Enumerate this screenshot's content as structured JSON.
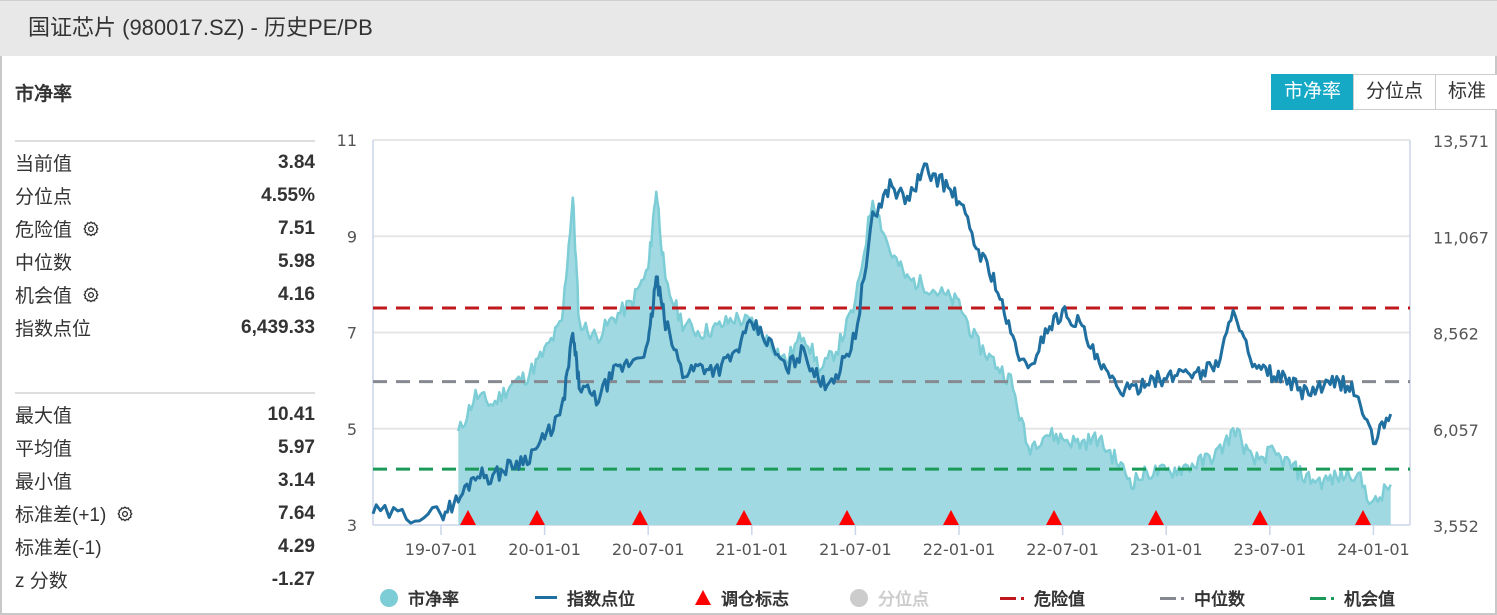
{
  "titlebar": {
    "title": "国证芯片 (980017.SZ) - 历史PE/PB"
  },
  "section": {
    "title": "市净率"
  },
  "tabs": [
    {
      "label": "市净率",
      "active": true
    },
    {
      "label": "分位点",
      "active": false
    },
    {
      "label": "标准",
      "active": false
    }
  ],
  "stats_top": [
    {
      "label": "当前值",
      "value": "3.84",
      "gear": false
    },
    {
      "label": "分位点",
      "value": "4.55%",
      "gear": false
    },
    {
      "label": "危险值",
      "value": "7.51",
      "gear": true
    },
    {
      "label": "中位数",
      "value": "5.98",
      "gear": false
    },
    {
      "label": "机会值",
      "value": "4.16",
      "gear": true
    },
    {
      "label": "指数点位",
      "value": "6,439.33",
      "gear": false
    }
  ],
  "stats_bottom": [
    {
      "label": "最大值",
      "value": "10.41",
      "gear": false
    },
    {
      "label": "平均值",
      "value": "5.97",
      "gear": false
    },
    {
      "label": "最小值",
      "value": "3.14",
      "gear": false
    },
    {
      "label": "标准差(+1)",
      "value": "7.64",
      "gear": true
    },
    {
      "label": "标准差(-1)",
      "value": "4.29",
      "gear": false
    },
    {
      "label": "z 分数",
      "value": "-1.27",
      "gear": false
    }
  ],
  "colors": {
    "pb_fill": "#a0d9e1",
    "pb_line": "#7dcdd6",
    "index_line": "#1f6fa0",
    "danger": "#c0191d",
    "median": "#868a90",
    "opportunity": "#1a9a58",
    "marker": "#ff0000",
    "grid": "#e6e6e6",
    "tab_active": "#16a9c6"
  },
  "legend": [
    {
      "label": "市净率",
      "symbol": "circle",
      "color": "#7dcdd6",
      "enabled": true
    },
    {
      "label": "指数点位",
      "symbol": "line",
      "color": "#1f6fa0",
      "enabled": true
    },
    {
      "label": "调仓标志",
      "symbol": "triangle",
      "color": "#ff0000",
      "enabled": true
    },
    {
      "label": "分位点",
      "symbol": "circle",
      "color": "#cccccc",
      "enabled": false
    },
    {
      "label": "危险值",
      "symbol": "dash",
      "color": "#c0191d",
      "enabled": true
    },
    {
      "label": "中位数",
      "symbol": "dash",
      "color": "#868a90",
      "enabled": true
    },
    {
      "label": "机会值",
      "symbol": "dash",
      "color": "#1a9a58",
      "enabled": true
    }
  ],
  "chart_data": {
    "type": "line",
    "title": "国证芯片 (980017.SZ) - 历史PE/PB",
    "left_axis": {
      "label": "市净率",
      "ticks": [
        "3",
        "5",
        "7",
        "9",
        "11"
      ],
      "range": [
        3,
        11
      ]
    },
    "right_axis": {
      "label": "指数点位",
      "ticks": [
        "3,552",
        "6,057",
        "8,562",
        "11,067",
        "13,571"
      ],
      "range": [
        3552,
        13571
      ]
    },
    "x_ticks": [
      "19-07-01",
      "20-01-01",
      "20-07-01",
      "21-01-01",
      "21-07-01",
      "22-01-01",
      "22-07-01",
      "23-01-01",
      "23-07-01",
      "24-01-01"
    ],
    "x": [
      "2019-03",
      "2019-05",
      "2019-07",
      "2019-08",
      "2019-09",
      "2019-10",
      "2019-11",
      "2019-12",
      "2020-01",
      "2020-02",
      "2020-02-20",
      "2020-03",
      "2020-04",
      "2020-05",
      "2020-06",
      "2020-07",
      "2020-07-15",
      "2020-08",
      "2020-09",
      "2020-10",
      "2020-11",
      "2020-12",
      "2021-01",
      "2021-02",
      "2021-03",
      "2021-04",
      "2021-05",
      "2021-06",
      "2021-07",
      "2021-08",
      "2021-09",
      "2021-10",
      "2021-11",
      "2021-12",
      "2022-01",
      "2022-02",
      "2022-03",
      "2022-04",
      "2022-05",
      "2022-06",
      "2022-07",
      "2022-08",
      "2022-09",
      "2022-10",
      "2022-11",
      "2022-12",
      "2023-01",
      "2023-02",
      "2023-03",
      "2023-04",
      "2023-05",
      "2023-06",
      "2023-07",
      "2023-08",
      "2023-09",
      "2023-10",
      "2023-11",
      "2023-12",
      "2024-01",
      "2024-02"
    ],
    "series": [
      {
        "name": "市净率",
        "values": [
          null,
          null,
          null,
          4.9,
          5.7,
          5.5,
          5.9,
          6.1,
          6.6,
          7.2,
          9.8,
          7.2,
          6.9,
          7.3,
          7.6,
          8.3,
          10.0,
          8.0,
          7.2,
          7.0,
          7.1,
          7.3,
          7.2,
          6.8,
          6.4,
          7.0,
          6.2,
          6.7,
          7.6,
          9.8,
          8.7,
          8.1,
          8.0,
          7.8,
          7.6,
          6.8,
          6.4,
          6.0,
          4.6,
          4.9,
          4.8,
          4.7,
          4.8,
          4.4,
          3.9,
          4.1,
          4.1,
          4.2,
          4.3,
          4.5,
          5.0,
          4.3,
          4.5,
          4.3,
          4.0,
          3.9,
          4.0,
          4.1,
          3.4,
          3.84
        ]
      },
      {
        "name": "指数点位",
        "values": [
          3900,
          3800,
          3850,
          4200,
          4900,
          4800,
          5100,
          5300,
          5800,
          6500,
          8500,
          7200,
          6800,
          7500,
          7800,
          8200,
          10000,
          8800,
          7500,
          7700,
          7600,
          8000,
          8800,
          8300,
          7600,
          8100,
          7200,
          7500,
          8500,
          11500,
          12400,
          12000,
          12800,
          12500,
          12000,
          10800,
          10000,
          8500,
          7500,
          8600,
          9100,
          8800,
          7800,
          7200,
          7000,
          7400,
          7300,
          7600,
          7500,
          7800,
          9200,
          7600,
          7500,
          7300,
          7000,
          7100,
          7300,
          7000,
          5700,
          6439
        ]
      },
      {
        "name": "危险值",
        "values": [
          7.51
        ]
      },
      {
        "name": "中位数",
        "values": [
          5.98
        ]
      },
      {
        "name": "机会值",
        "values": [
          4.16
        ]
      }
    ],
    "rebalance_markers": [
      "2019-08",
      "2020-01",
      "2020-07",
      "2021-01",
      "2021-07",
      "2022-01",
      "2022-07",
      "2023-01",
      "2023-07",
      "2024-01"
    ],
    "grid": true,
    "legend_position": "bottom"
  }
}
